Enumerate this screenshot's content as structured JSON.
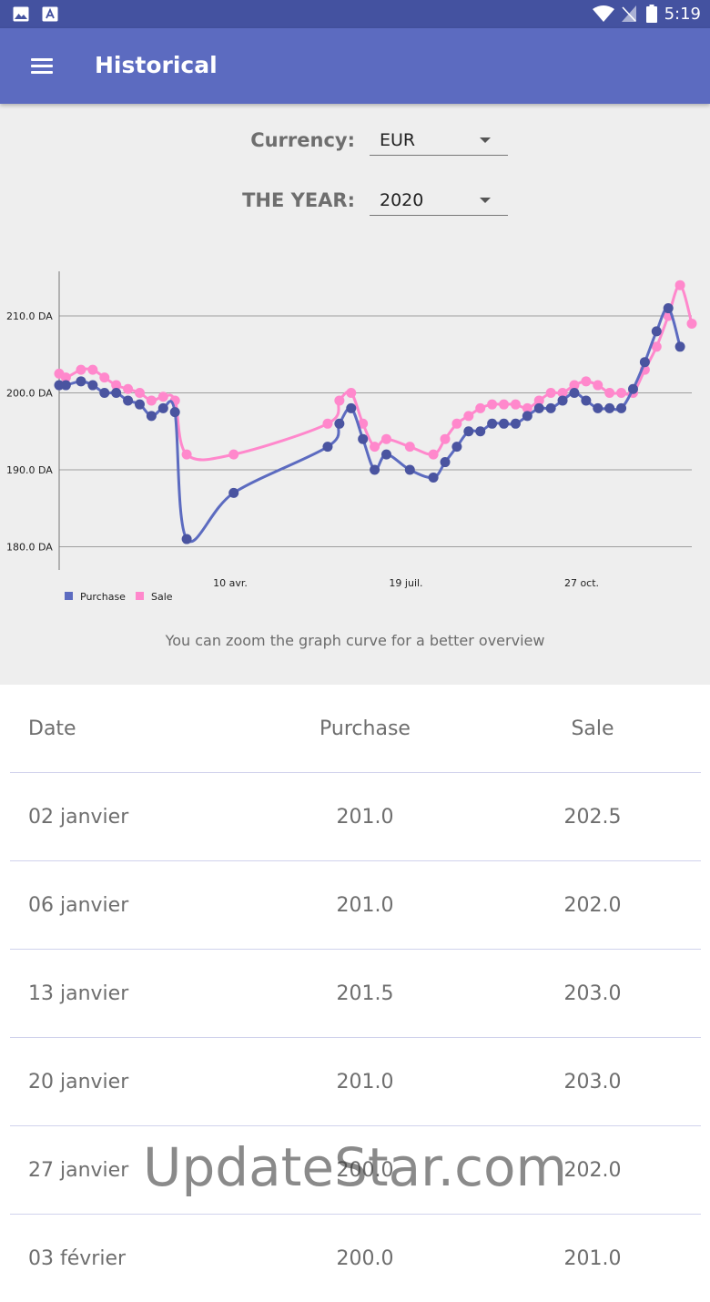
{
  "status_bar": {
    "time": "5:19"
  },
  "app_bar": {
    "title": "Historical"
  },
  "currency": {
    "label": "Currency:",
    "value": "EUR"
  },
  "year": {
    "label": "THE YEAR:",
    "value": "2020"
  },
  "hint": "You can zoom the graph curve for a better overview",
  "colors": {
    "appbar": "#5c6bc0",
    "statusbar": "#4452a0",
    "purchase": "#5c6bc0",
    "sale": "#ff88cc"
  },
  "chart_data": {
    "type": "line",
    "y_ticks": [
      "210.0 DA",
      "200.0 DA",
      "190.0 DA",
      "180.0 DA"
    ],
    "x_ticks": [
      "10 avr.",
      "19 juil.",
      "27 oct."
    ],
    "ylim": [
      178,
      216
    ],
    "grid": true,
    "legend_position": "bottom-left",
    "series": [
      {
        "name": "Purchase",
        "color": "#5c6bc0",
        "points": [
          [
            0,
            201
          ],
          [
            4,
            201
          ],
          [
            13,
            201.5
          ],
          [
            20,
            201
          ],
          [
            27,
            200
          ],
          [
            34,
            200
          ],
          [
            41,
            199
          ],
          [
            48,
            198.5
          ],
          [
            55,
            197
          ],
          [
            62,
            198
          ],
          [
            69,
            197.5
          ],
          [
            76,
            181
          ],
          [
            104,
            187
          ],
          [
            160,
            193
          ],
          [
            167,
            196
          ],
          [
            174,
            198
          ],
          [
            181,
            194
          ],
          [
            188,
            190
          ],
          [
            195,
            192
          ],
          [
            209,
            190
          ],
          [
            223,
            189
          ],
          [
            230,
            191
          ],
          [
            237,
            193
          ],
          [
            244,
            195
          ],
          [
            251,
            195
          ],
          [
            258,
            196
          ],
          [
            265,
            196
          ],
          [
            272,
            196
          ],
          [
            279,
            197
          ],
          [
            286,
            198
          ],
          [
            293,
            198
          ],
          [
            300,
            199
          ],
          [
            307,
            200
          ],
          [
            314,
            199
          ],
          [
            321,
            198
          ],
          [
            328,
            198
          ],
          [
            335,
            198
          ],
          [
            342,
            200.5
          ],
          [
            349,
            204
          ],
          [
            356,
            208
          ],
          [
            363,
            211
          ],
          [
            370,
            206
          ]
        ]
      },
      {
        "name": "Sale",
        "color": "#ff88cc",
        "points": [
          [
            0,
            202.5
          ],
          [
            4,
            202
          ],
          [
            13,
            203
          ],
          [
            20,
            203
          ],
          [
            27,
            202
          ],
          [
            34,
            201
          ],
          [
            41,
            200.5
          ],
          [
            48,
            200
          ],
          [
            55,
            199
          ],
          [
            62,
            199.5
          ],
          [
            69,
            199
          ],
          [
            76,
            192
          ],
          [
            104,
            192
          ],
          [
            160,
            196
          ],
          [
            167,
            199
          ],
          [
            174,
            200
          ],
          [
            181,
            196
          ],
          [
            188,
            193
          ],
          [
            195,
            194
          ],
          [
            209,
            193
          ],
          [
            223,
            192
          ],
          [
            230,
            194
          ],
          [
            237,
            196
          ],
          [
            244,
            197
          ],
          [
            251,
            198
          ],
          [
            258,
            198.5
          ],
          [
            265,
            198.5
          ],
          [
            272,
            198.5
          ],
          [
            279,
            198
          ],
          [
            286,
            199
          ],
          [
            293,
            200
          ],
          [
            300,
            200
          ],
          [
            307,
            201
          ],
          [
            314,
            201.5
          ],
          [
            321,
            201
          ],
          [
            328,
            200
          ],
          [
            335,
            200
          ],
          [
            342,
            200
          ],
          [
            349,
            203
          ],
          [
            356,
            206
          ],
          [
            363,
            210
          ],
          [
            370,
            214
          ],
          [
            377,
            209
          ]
        ]
      }
    ]
  },
  "table": {
    "headers": {
      "date": "Date",
      "purchase": "Purchase",
      "sale": "Sale"
    },
    "rows": [
      {
        "date": "02 janvier",
        "purchase": "201.0",
        "sale": "202.5"
      },
      {
        "date": "06 janvier",
        "purchase": "201.0",
        "sale": "202.0"
      },
      {
        "date": "13 janvier",
        "purchase": "201.5",
        "sale": "203.0"
      },
      {
        "date": "20 janvier",
        "purchase": "201.0",
        "sale": "203.0"
      },
      {
        "date": "27 janvier",
        "purchase": "200.0",
        "sale": "202.0"
      },
      {
        "date": "03 février",
        "purchase": "200.0",
        "sale": "201.0"
      }
    ]
  },
  "watermark": "UpdateStar.com"
}
